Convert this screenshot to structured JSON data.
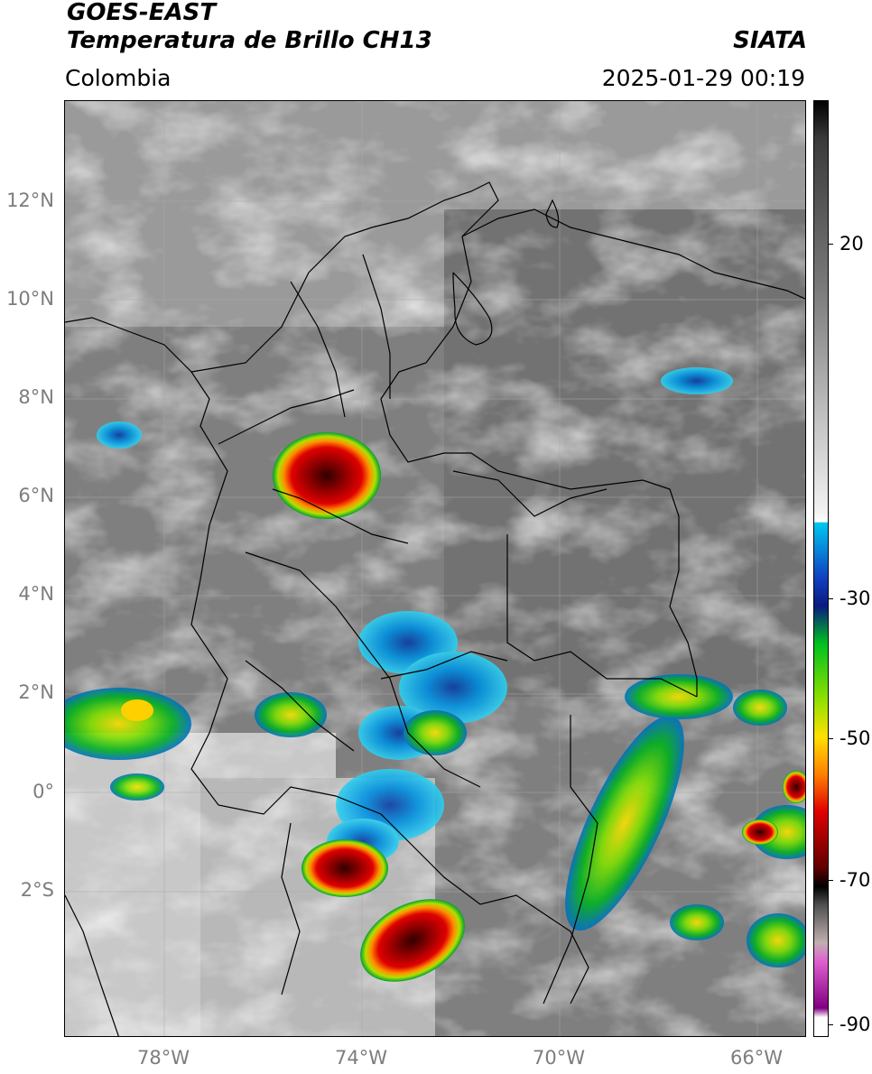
{
  "header": {
    "title_line1": "GOES-EAST",
    "title_line2": "Temperatura de Brillo CH13",
    "region": "Colombia",
    "org": "SIATA",
    "datetime": "2025-01-29 00:19"
  },
  "axes": {
    "lat_labels": [
      "12°N",
      "10°N",
      "8°N",
      "6°N",
      "4°N",
      "2°N",
      "0°",
      "2°S"
    ],
    "lon_labels": [
      "78°W",
      "74°W",
      "70°W",
      "66°W"
    ]
  },
  "colorbar": {
    "ticks": [
      "20",
      "-30",
      "-50",
      "-70",
      "-90"
    ],
    "colors": {
      "warm_gray_dark": "#3a3a3a",
      "gray_light": "#f2f2f2",
      "cyan": "#00c8f0",
      "blue": "#1040c0",
      "navy": "#0a1a80",
      "green": "#00c020",
      "lime": "#90e000",
      "yellow": "#ffe000",
      "orange": "#ff8000",
      "red": "#e00000",
      "dark_red": "#600000",
      "black": "#000000",
      "pink": "#e060d0",
      "purple": "#800080"
    }
  }
}
